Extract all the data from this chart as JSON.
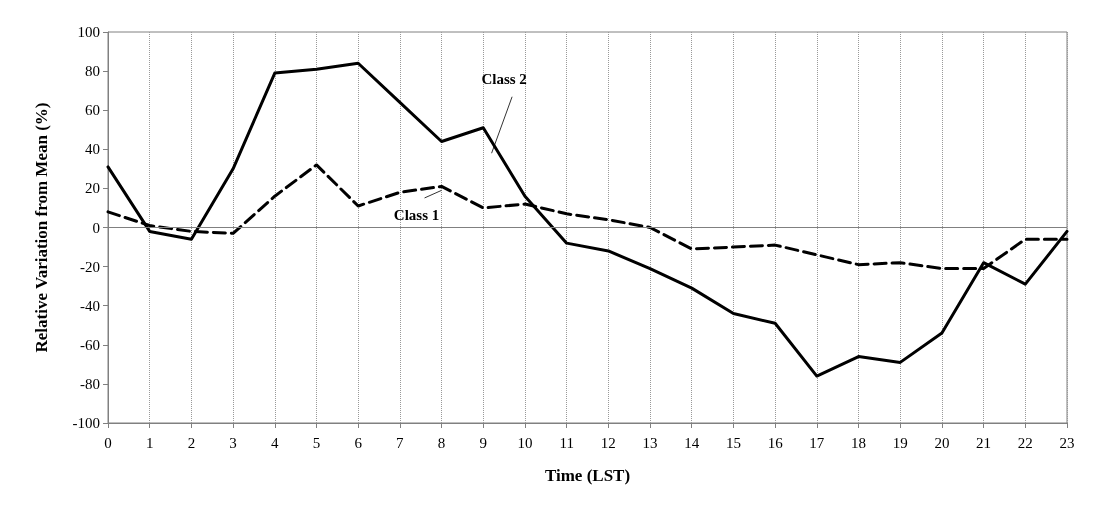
{
  "chart_data": {
    "type": "line",
    "xlabel": "Time (LST)",
    "ylabel": "Relative Variation from Mean (%)",
    "x": [
      0,
      1,
      2,
      3,
      4,
      5,
      6,
      7,
      8,
      9,
      10,
      11,
      12,
      13,
      14,
      15,
      16,
      17,
      18,
      19,
      20,
      21,
      22,
      23
    ],
    "series": [
      {
        "name": "Class 1",
        "color": "#000000",
        "line_style": "dashed",
        "values": [
          8,
          1,
          -2,
          -3,
          16,
          32,
          11,
          18,
          21,
          10,
          12,
          7,
          4,
          0,
          -11,
          -10,
          -9,
          -14,
          -19,
          -18,
          -21,
          -21,
          -6,
          -6
        ]
      },
      {
        "name": "Class 2",
        "color": "#000000",
        "line_style": "solid",
        "values": [
          31,
          -2,
          -6,
          30,
          79,
          81,
          84,
          64,
          44,
          51,
          16,
          -8,
          -12,
          -21,
          -31,
          -44,
          -49,
          -76,
          -66,
          -69,
          -54,
          -18,
          -29,
          -2
        ]
      }
    ],
    "xlim": [
      0,
      23
    ],
    "xticks": [
      0,
      1,
      2,
      3,
      4,
      5,
      6,
      7,
      8,
      9,
      10,
      11,
      12,
      13,
      14,
      15,
      16,
      17,
      18,
      19,
      20,
      21,
      22,
      23
    ],
    "ylim": [
      -100,
      100
    ],
    "yticks": [
      -100,
      -80,
      -60,
      -40,
      -20,
      0,
      20,
      40,
      60,
      80,
      100
    ],
    "ref_lines": [
      {
        "axis": "y",
        "value": 0,
        "color": "#808080"
      }
    ],
    "grid": "x",
    "legend": false,
    "marker": "none"
  }
}
